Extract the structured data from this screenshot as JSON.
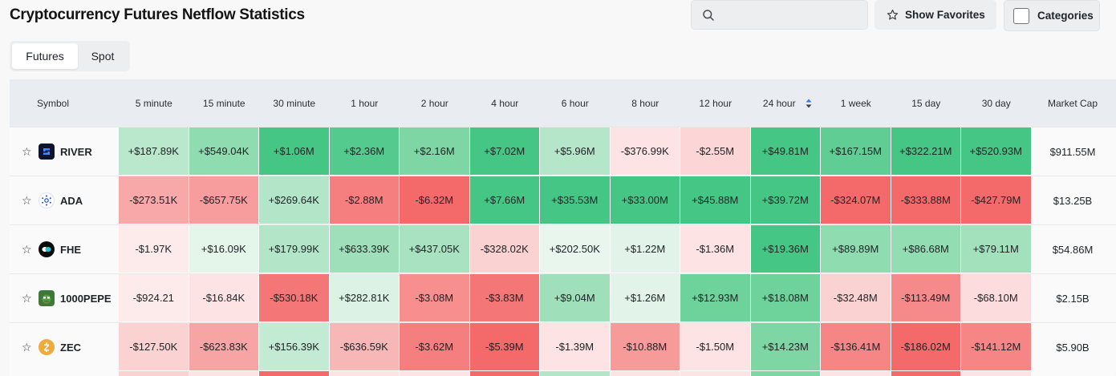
{
  "title": "Cryptocurrency Futures Netflow Statistics",
  "search": {
    "placeholder": "",
    "value": ""
  },
  "buttons": {
    "favorites": "Show Favorites",
    "categories": "Categories"
  },
  "tabs": [
    {
      "label": "Futures",
      "active": true
    },
    {
      "label": "Spot",
      "active": false
    }
  ],
  "table": {
    "headers": [
      "Symbol",
      "5 minute",
      "15 minute",
      "30 minute",
      "1 hour",
      "2 hour",
      "4 hour",
      "6 hour",
      "8 hour",
      "12 hour",
      "24 hour",
      "1 week",
      "15 day",
      "30 day",
      "Market Cap"
    ],
    "sorted_column": "24 hour",
    "rows": [
      {
        "symbol": "RIVER",
        "icon": "river-logo-icon",
        "values": [
          "+$187.89K",
          "+$549.04K",
          "+$1.06M",
          "+$2.36M",
          "+$2.16M",
          "+$7.02M",
          "+$5.96M",
          "-$376.99K",
          "-$2.55M",
          "+$49.81M",
          "+$167.15M",
          "+$322.21M",
          "+$520.93M"
        ],
        "colors": [
          "#b9e8cc",
          "#8fdcb0",
          "#45c685",
          "#55ca8e",
          "#7dd6a3",
          "#45c685",
          "#b5e6c9",
          "#fde3e3",
          "#fcd6d6",
          "#45c685",
          "#5fcd94",
          "#45c685",
          "#45c685"
        ],
        "market_cap": "$911.55M"
      },
      {
        "symbol": "ADA",
        "icon": "cardano-logo-icon",
        "values": [
          "-$273.51K",
          "-$657.75K",
          "+$269.64K",
          "-$2.88M",
          "-$6.32M",
          "+$7.66M",
          "+$35.53M",
          "+$33.00M",
          "+$45.88M",
          "+$39.72M",
          "-$324.07M",
          "-$333.88M",
          "-$427.79M"
        ],
        "colors": [
          "#f8a8a8",
          "#f79d9d",
          "#b3e6c8",
          "#f57f7f",
          "#f46969",
          "#45c685",
          "#45c685",
          "#45c685",
          "#45c685",
          "#45c685",
          "#f46969",
          "#f46969",
          "#f46969"
        ],
        "market_cap": "$13.25B"
      },
      {
        "symbol": "FHE",
        "icon": "fhe-logo-icon",
        "values": [
          "-$1.97K",
          "+$16.09K",
          "+$179.99K",
          "+$633.39K",
          "+$437.05K",
          "-$328.02K",
          "+$202.50K",
          "+$1.22M",
          "-$1.36M",
          "+$19.36M",
          "+$89.89M",
          "+$86.68M",
          "+$79.11M"
        ],
        "colors": [
          "#fdeaea",
          "#e4f5ea",
          "#b3e6c8",
          "#9fe0ba",
          "#a8e2c0",
          "#fad2d2",
          "#e8f6ee",
          "#e2f4e9",
          "#fde3e3",
          "#45c685",
          "#8fdcb0",
          "#93ddb2",
          "#a3e1bd"
        ],
        "market_cap": "$54.86M"
      },
      {
        "symbol": "1000PEPE",
        "icon": "pepe-logo-icon",
        "values": [
          "-$924.21",
          "-$16.84K",
          "-$530.18K",
          "+$282.81K",
          "-$3.08M",
          "-$3.83M",
          "+$9.04M",
          "+$1.26M",
          "+$12.93M",
          "+$18.08M",
          "-$32.48M",
          "-$113.49M",
          "-$68.10M"
        ],
        "colors": [
          "#fdeaea",
          "#fde3e3",
          "#f57676",
          "#dbf2e4",
          "#f78f8f",
          "#f57676",
          "#9fe0ba",
          "#e2f4e9",
          "#6ed29b",
          "#6ed29b",
          "#fbd2d2",
          "#f68a8a",
          "#fcdcdc"
        ],
        "market_cap": "$2.15B"
      },
      {
        "symbol": "ZEC",
        "icon": "zcash-logo-icon",
        "values": [
          "-$127.50K",
          "-$623.83K",
          "+$156.39K",
          "-$636.59K",
          "-$3.62M",
          "-$5.39M",
          "-$1.39M",
          "-$10.88M",
          "-$1.50M",
          "+$14.23M",
          "-$136.41M",
          "-$186.02M",
          "-$141.12M"
        ],
        "colors": [
          "#fbd2d2",
          "#f7a4a4",
          "#c3ebd3",
          "#f8b7b7",
          "#f57f7f",
          "#f46969",
          "#fde3e3",
          "#f79a9a",
          "#fde3e3",
          "#7dd6a3",
          "#f68585",
          "#f46969",
          "#f68585"
        ],
        "market_cap": "$5.90B"
      }
    ],
    "partial_row_colors": [
      "#fafafa",
      "#fbd2d2",
      "#fde3e3",
      "#f46969",
      "#fde3e3",
      "#fde3e3",
      "#f46969",
      "#b3e6c8",
      "#fde3e3",
      "#fde3e3",
      "#7dd6a3",
      "#fde3e3",
      "#f46969",
      "#fde3e3",
      "#fafafa"
    ]
  }
}
